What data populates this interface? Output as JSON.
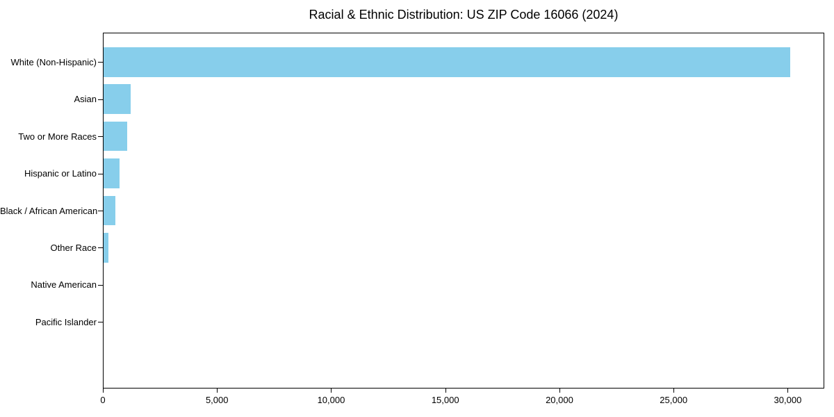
{
  "title": "Racial & Ethnic Distribution: US ZIP Code 16066 (2024)",
  "chart_data": {
    "type": "bar",
    "orientation": "horizontal",
    "title": "Racial & Ethnic Distribution: US ZIP Code 16066 (2024)",
    "xlabel": "",
    "ylabel": "",
    "categories": [
      "White (Non-Hispanic)",
      "Asian",
      "Two or More Races",
      "Hispanic or Latino",
      "Black / African American",
      "Other Race",
      "Native American",
      "Pacific Islander"
    ],
    "values": [
      30100,
      1220,
      1070,
      730,
      550,
      250,
      0,
      0
    ],
    "xlim": [
      0,
      31600
    ],
    "x_ticks": [
      0,
      5000,
      10000,
      15000,
      20000,
      25000,
      30000
    ],
    "x_tick_labels": [
      "0",
      "5,000",
      "10,000",
      "15,000",
      "20,000",
      "25,000",
      "30,000"
    ],
    "grid": false,
    "legend": null,
    "bar_color": "#87CEEB"
  },
  "colors": {
    "bar": "#87CEEB",
    "axis": "#000000",
    "text": "#000000",
    "background": "#ffffff"
  }
}
